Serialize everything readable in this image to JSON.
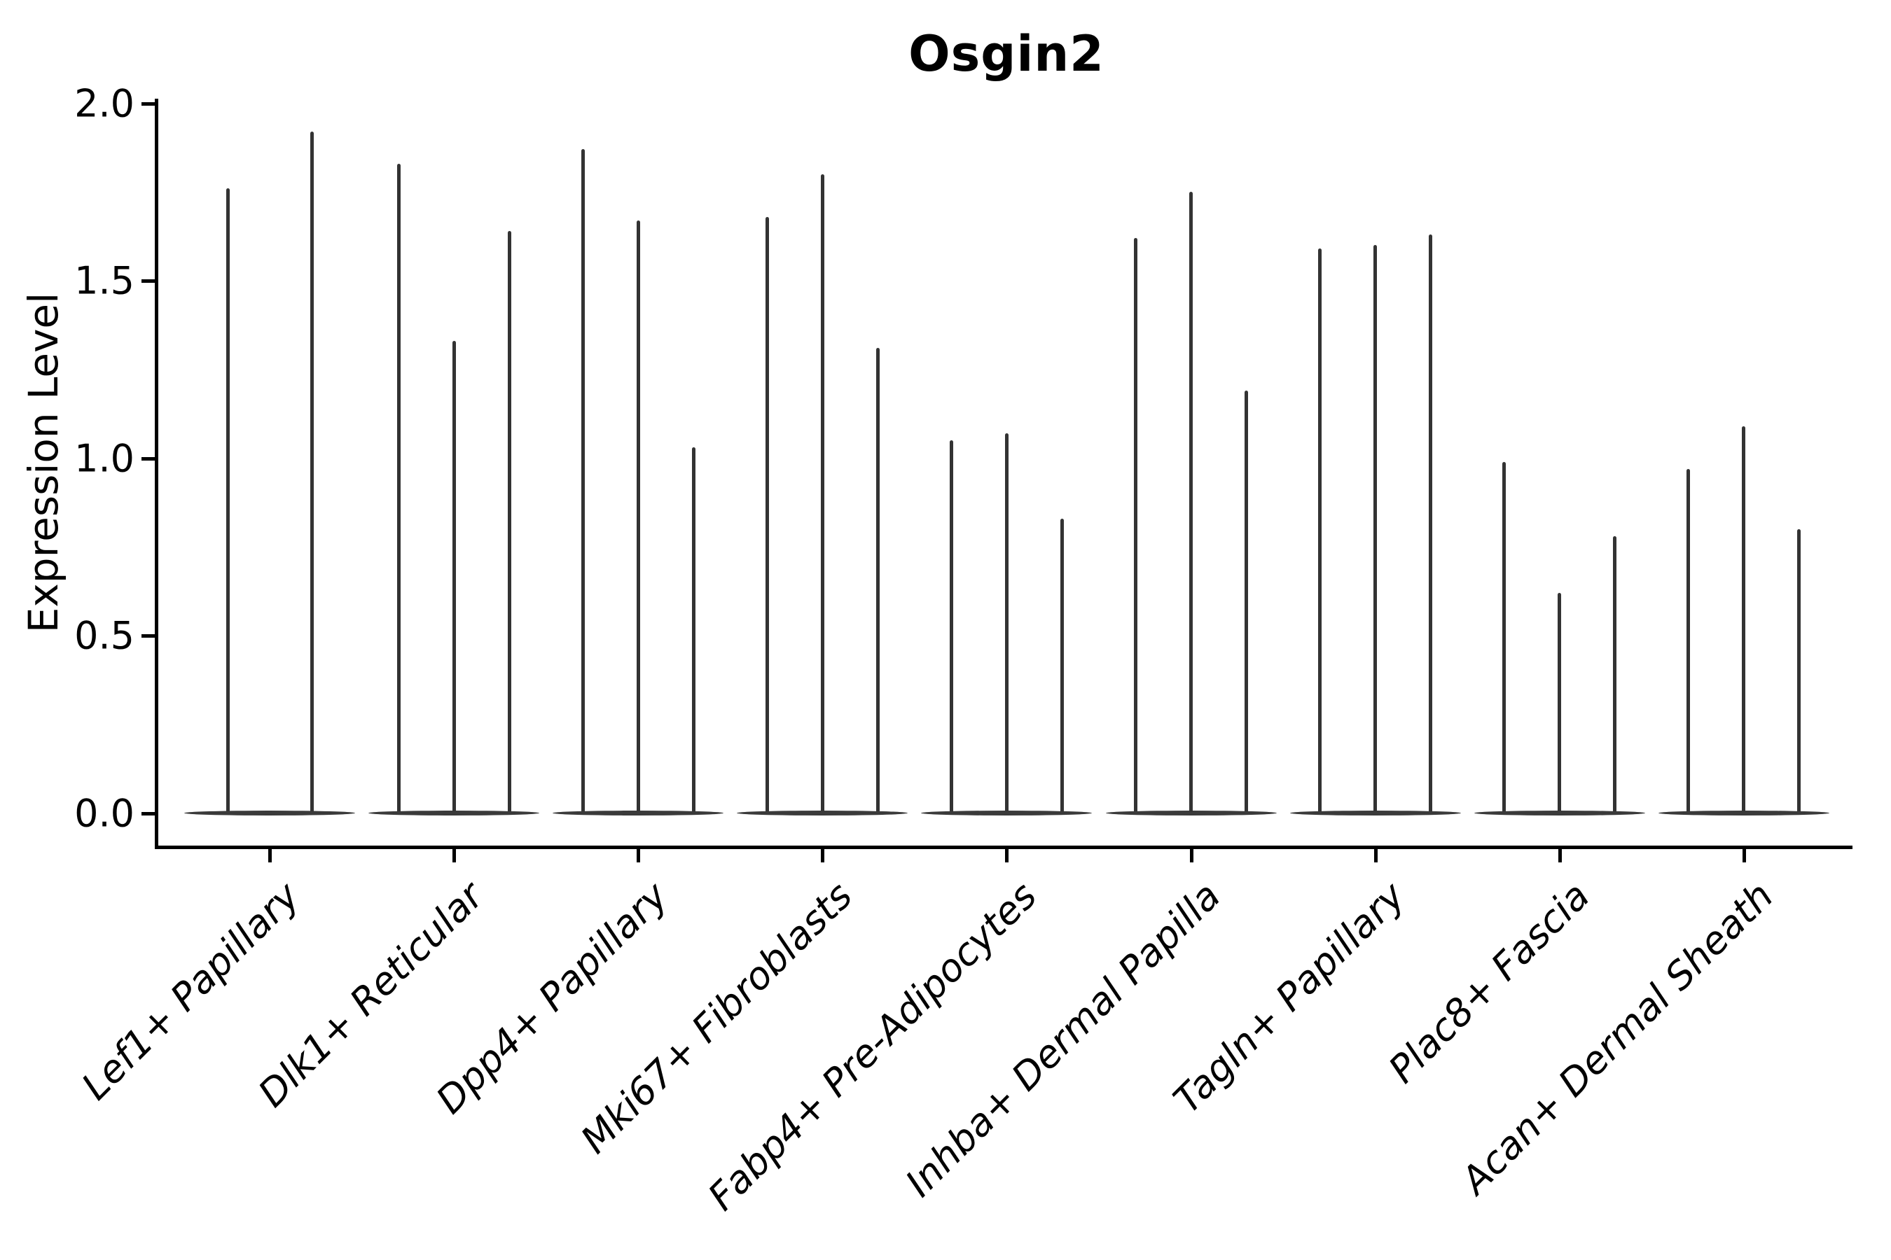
{
  "chart_data": {
    "type": "violin",
    "title": "Osgin2",
    "ylabel": "Expression Level",
    "xlabel": "",
    "ylim": [
      0.0,
      2.0
    ],
    "yticks": [
      "0.0",
      "0.5",
      "1.0",
      "1.5",
      "2.0"
    ],
    "legend": "none",
    "grid": false,
    "style": "thin violins: density concentrated at 0 with a narrow spike up to each group's maximum expression; grouped violins per cell-type category",
    "groups": [
      {
        "label": "Lef1+ Papillary",
        "violin_max_values": [
          1.76,
          1.92
        ]
      },
      {
        "label": "Dlk1+ Reticular",
        "violin_max_values": [
          1.83,
          1.33,
          1.64
        ]
      },
      {
        "label": "Dpp4+ Papillary",
        "violin_max_values": [
          1.87,
          1.67,
          1.03
        ]
      },
      {
        "label": "Mki67+ Fibroblasts",
        "violin_max_values": [
          1.68,
          1.8,
          1.31
        ]
      },
      {
        "label": "Fabp4+ Pre-Adipocytes",
        "violin_max_values": [
          1.05,
          1.07,
          0.83
        ]
      },
      {
        "label": "Inhba+ Dermal Papilla",
        "violin_max_values": [
          1.62,
          1.75,
          1.19
        ]
      },
      {
        "label": "Tagln+ Papillary",
        "violin_max_values": [
          1.59,
          1.6,
          1.63
        ]
      },
      {
        "label": "Plac8+ Fascia",
        "violin_max_values": [
          0.99,
          0.62,
          0.78
        ]
      },
      {
        "label": "Acan+ Dermal Sheath",
        "violin_max_values": [
          0.97,
          1.09,
          0.8
        ]
      }
    ],
    "colors": {
      "violin": "#333333",
      "violin_base": "#3a3a3a",
      "axis": "#000000",
      "text": "#000000",
      "background": "#ffffff"
    }
  }
}
